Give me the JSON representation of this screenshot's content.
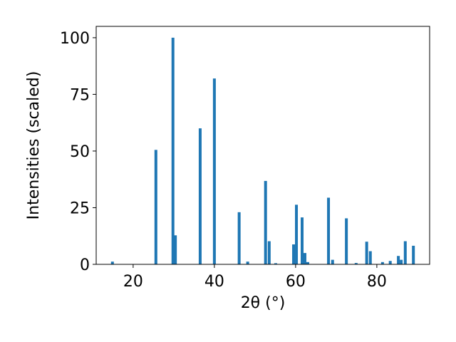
{
  "chart_data": {
    "type": "bar",
    "x_label": "2θ (°)",
    "y_label": "Intensities (scaled)",
    "x": [
      14.9,
      25.6,
      29.8,
      30.4,
      36.5,
      40.0,
      46.1,
      48.2,
      52.6,
      53.5,
      55.1,
      59.5,
      60.2,
      61.6,
      62.3,
      63.0,
      68.1,
      69.1,
      72.5,
      74.9,
      77.5,
      78.4,
      81.4,
      83.3,
      85.3,
      86.0,
      87.0,
      89.0
    ],
    "values": [
      1.2,
      50.5,
      100,
      12.8,
      60,
      82,
      23,
      1.2,
      36.8,
      10.2,
      0.5,
      8.8,
      26.3,
      20.7,
      5,
      1,
      29.4,
      2,
      20.3,
      0.6,
      10,
      5.8,
      1,
      1.5,
      3.7,
      2,
      10.2,
      8.2
    ],
    "color": "#1f77b4",
    "xlim": [
      10.9,
      93.0
    ],
    "ylim": [
      0,
      105
    ],
    "xticks": [
      20,
      40,
      60,
      80
    ],
    "yticks": [
      0,
      25,
      50,
      75,
      100
    ]
  }
}
